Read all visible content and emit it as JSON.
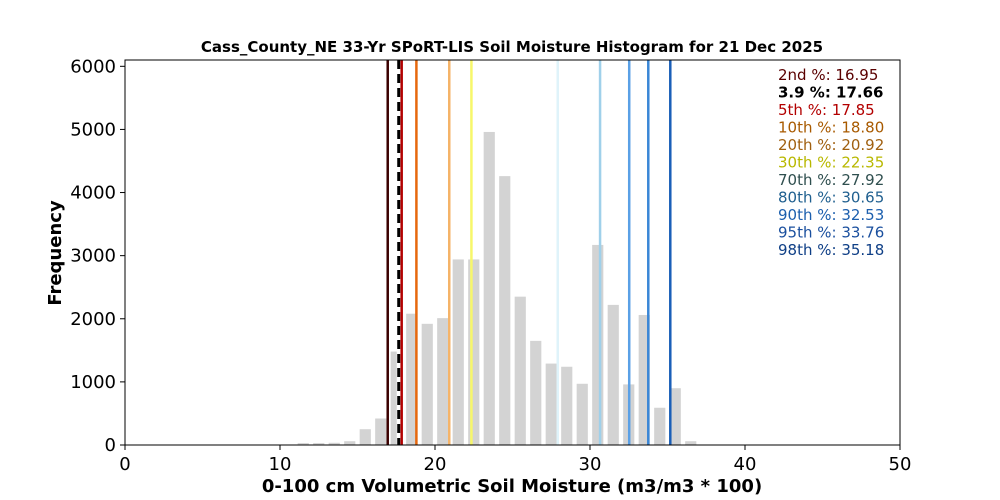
{
  "chart_data": {
    "type": "bar",
    "title": "Cass_County_NE 33-Yr SPoRT-LIS Soil Moisture Histogram for 21 Dec 2025",
    "xlabel": "0-100 cm Volumetric Soil Moisture (m3/m3 * 100)",
    "ylabel": "Frequency",
    "xlim": [
      0,
      50
    ],
    "ylim": [
      0,
      6100
    ],
    "xticks": [
      0,
      10,
      20,
      30,
      40,
      50
    ],
    "yticks": [
      0,
      1000,
      2000,
      3000,
      4000,
      5000,
      6000
    ],
    "bar_color": "#d3d3d3",
    "bin_width": 1.0,
    "bins": [
      {
        "x": 11.5,
        "value": 30
      },
      {
        "x": 12.5,
        "value": 30
      },
      {
        "x": 13.5,
        "value": 35
      },
      {
        "x": 14.5,
        "value": 60
      },
      {
        "x": 15.5,
        "value": 250
      },
      {
        "x": 16.5,
        "value": 420
      },
      {
        "x": 17.5,
        "value": 1480
      },
      {
        "x": 18.5,
        "value": 2080
      },
      {
        "x": 19.5,
        "value": 1920
      },
      {
        "x": 20.5,
        "value": 2010
      },
      {
        "x": 21.5,
        "value": 2940
      },
      {
        "x": 22.5,
        "value": 2940
      },
      {
        "x": 23.5,
        "value": 4960
      },
      {
        "x": 24.5,
        "value": 4260
      },
      {
        "x": 25.5,
        "value": 2350
      },
      {
        "x": 26.5,
        "value": 1650
      },
      {
        "x": 27.5,
        "value": 1290
      },
      {
        "x": 28.5,
        "value": 1240
      },
      {
        "x": 29.5,
        "value": 970
      },
      {
        "x": 30.5,
        "value": 3170
      },
      {
        "x": 31.5,
        "value": 2220
      },
      {
        "x": 32.5,
        "value": 960
      },
      {
        "x": 33.5,
        "value": 2060
      },
      {
        "x": 34.5,
        "value": 590
      },
      {
        "x": 35.5,
        "value": 900
      },
      {
        "x": 36.5,
        "value": 60
      }
    ],
    "percentile_lines": [
      {
        "label": "2nd %",
        "value": 16.95,
        "color": "#3b0000",
        "text_color": "#5a0000",
        "dashed": false
      },
      {
        "label": "3.9 %",
        "value": 17.66,
        "color": "#000000",
        "text_color": "#000000",
        "dashed": true
      },
      {
        "label": "5th %",
        "value": 17.85,
        "color": "#b30000",
        "text_color": "#b30000",
        "dashed": false
      },
      {
        "label": "10th %",
        "value": 18.8,
        "color": "#e6680e",
        "text_color": "#a85a00",
        "dashed": false
      },
      {
        "label": "20th %",
        "value": 20.92,
        "color": "#f5b368",
        "text_color": "#a06010",
        "dashed": false
      },
      {
        "label": "30th %",
        "value": 22.35,
        "color": "#f7f76a",
        "text_color": "#b8b800",
        "dashed": false
      },
      {
        "label": "70th %",
        "value": 27.92,
        "color": "#dff3fa",
        "text_color": "#2f4f4f",
        "dashed": false
      },
      {
        "label": "80th %",
        "value": 30.65,
        "color": "#9fd0ea",
        "text_color": "#1f5f8f",
        "dashed": false
      },
      {
        "label": "90th %",
        "value": 32.53,
        "color": "#5aa0e6",
        "text_color": "#1c5fae",
        "dashed": false
      },
      {
        "label": "95th %",
        "value": 33.76,
        "color": "#3a86d6",
        "text_color": "#1a4f9e",
        "dashed": false
      },
      {
        "label": "98th %",
        "value": 35.18,
        "color": "#1a5fb8",
        "text_color": "#0f3f86",
        "dashed": false
      }
    ]
  }
}
